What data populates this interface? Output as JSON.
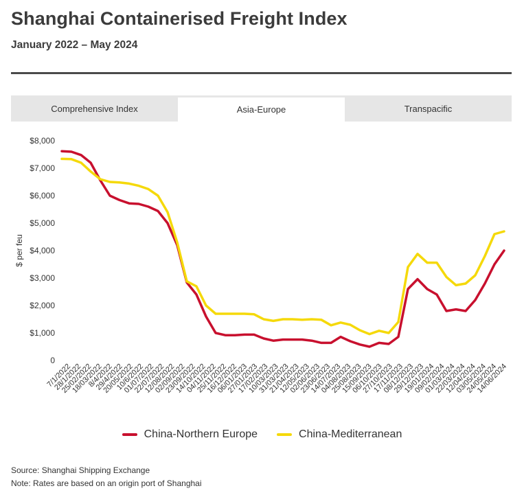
{
  "header": {
    "title": "Shanghai Containerised Freight Index",
    "subtitle": "January 2022 – May 2024"
  },
  "tabs": [
    {
      "label": "Comprehensive Index",
      "active": false
    },
    {
      "label": "Asia-Europe",
      "active": true
    },
    {
      "label": "Transpacific",
      "active": false
    }
  ],
  "footer": {
    "source": "Source: Shanghai Shipping Exchange",
    "note": "Note: Rates are based on an origin port of Shanghai"
  },
  "colors": {
    "northern_europe": "#c8102e",
    "mediterranean": "#f5d90a",
    "tab_inactive": "#e6e6e6"
  },
  "chart_data": {
    "type": "line",
    "title": "Shanghai Containerised Freight Index",
    "subtitle": "January 2022 – May 2024",
    "xlabel": "",
    "ylabel": "$ per feu",
    "ylim": [
      0,
      8000
    ],
    "yticks": [
      0,
      1000,
      2000,
      3000,
      4000,
      5000,
      6000,
      7000,
      8000
    ],
    "ytick_labels": [
      "0",
      "$1,000",
      "$2,000",
      "$3,000",
      "$4,000",
      "$5,000",
      "$6,000",
      "$7,000",
      "$8,000"
    ],
    "x_tick_labels": [
      "7/1/2022",
      "28/1/2022",
      "25/02/2022",
      "18/03/2022",
      "8/4/2022",
      "29/4/2022",
      "20/05/2022",
      "10/6/2022",
      "01/07/2022",
      "22/07/2022",
      "12/08/2022",
      "02/09/2022",
      "23/09/2022",
      "14/10/2022",
      "04/11/2022",
      "25/11/2022",
      "16/12/2022",
      "06/01/2023",
      "27/01/2023",
      "17/02/2023",
      "10/03/2023",
      "31/03/2023",
      "21/04/2023",
      "12/05/2023",
      "02/06/2023",
      "23/06/2023",
      "14/07/2023",
      "04/08/2023",
      "25/08/2023",
      "15/09/2023",
      "06/10/2023",
      "27/10/2023",
      "17/11/2023",
      "08/12/2023",
      "29/12/2023",
      "19/01/2024",
      "09/02/2024",
      "01/03/2024",
      "22/03/2024",
      "12/04/2024",
      "03/05/2024",
      "24/05/2024",
      "14/06/2024"
    ],
    "grid": false,
    "legend_position": "bottom",
    "series": [
      {
        "name": "China-Northern Europe",
        "color": "#c8102e",
        "values": [
          7620,
          7600,
          7480,
          7200,
          6560,
          6000,
          5840,
          5720,
          5700,
          5600,
          5440,
          5000,
          4200,
          2840,
          2400,
          1600,
          1000,
          920,
          920,
          940,
          940,
          800,
          720,
          760,
          760,
          760,
          720,
          640,
          640,
          860,
          700,
          580,
          500,
          640,
          600,
          860,
          2600,
          2960,
          2600,
          2400,
          1800,
          1860,
          1800,
          2200,
          2800,
          3500,
          4000
        ]
      },
      {
        "name": "China-Mediterranean",
        "color": "#f5d90a",
        "values": [
          7340,
          7330,
          7200,
          6880,
          6600,
          6500,
          6480,
          6440,
          6360,
          6240,
          6000,
          5400,
          4300,
          2880,
          2700,
          2000,
          1700,
          1700,
          1700,
          1700,
          1680,
          1500,
          1440,
          1500,
          1500,
          1480,
          1500,
          1480,
          1280,
          1380,
          1300,
          1100,
          960,
          1080,
          1000,
          1400,
          3400,
          3880,
          3560,
          3560,
          3040,
          2740,
          2800,
          3100,
          3800,
          4600,
          4700
        ]
      }
    ]
  }
}
